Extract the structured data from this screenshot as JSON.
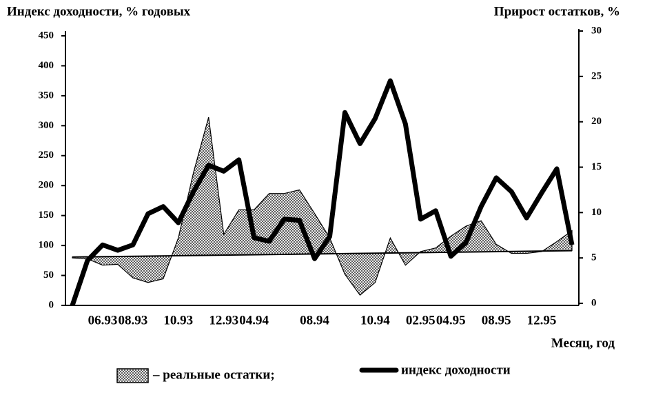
{
  "chart_data": {
    "type": "line",
    "y_label": "Индекс доходности,  %  годовых",
    "y2_label": "Прирост остатков,  %",
    "x_label": "Месяц,  год",
    "categories": [
      null,
      null,
      "06.93",
      null,
      "08.93",
      null,
      null,
      "10.93",
      null,
      null,
      "12.93",
      null,
      "04.94",
      null,
      null,
      null,
      "08.94",
      null,
      null,
      null,
      "10.94",
      null,
      null,
      "02.95",
      null,
      "04.95",
      null,
      null,
      "08.95",
      null,
      null,
      "12.95",
      null,
      null
    ],
    "ylim": [
      0,
      450
    ],
    "yticks": [
      0,
      50,
      100,
      150,
      200,
      250,
      300,
      350,
      400,
      450
    ],
    "y2lim": [
      0,
      30
    ],
    "y2ticks": [
      0,
      5,
      10,
      15,
      20,
      25,
      30
    ],
    "baseline": [
      5.1,
      5.8
    ],
    "series": [
      {
        "name": "– реальные остатки;",
        "type": "area",
        "axis": "y2",
        "color": "#000000",
        "values": [
          5.0,
          4.9,
          4.2,
          4.3,
          2.8,
          2.3,
          2.7,
          7.2,
          14.4,
          20.5,
          7.6,
          10.3,
          10.3,
          12.1,
          12.1,
          12.5,
          9.9,
          7.2,
          3.2,
          0.9,
          2.3,
          7.2,
          4.2,
          5.7,
          6.1,
          7.4,
          8.5,
          9.1,
          6.5,
          5.5,
          5.5,
          5.7,
          6.8,
          8.0
        ]
      },
      {
        "name": "индекс  доходности",
        "type": "line",
        "color": "#000000",
        "values": [
          0,
          75,
          101,
          92,
          101,
          153,
          165,
          138,
          190,
          234,
          224,
          243,
          113,
          107,
          144,
          142,
          78,
          115,
          322,
          270,
          312,
          375,
          303,
          144,
          158,
          82,
          105,
          165,
          213,
          190,
          146,
          188,
          228,
          101
        ]
      }
    ]
  }
}
